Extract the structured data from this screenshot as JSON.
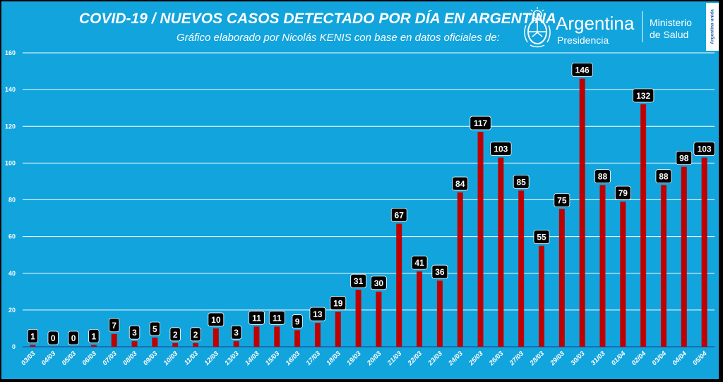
{
  "header": {
    "title": "COVID-19  /  NUEVOS CASOS DETECTADO POR DÍA EN ARGENTINA",
    "subtitle": "Gráfico elaborado por Nicolás KENIS con base en datos oficiales de:"
  },
  "logos": {
    "government": "Argentina",
    "government_sub": "Presidencia",
    "ministry_line1": "Ministerio",
    "ministry_line2": "de Salud",
    "badge": "Argentina unida"
  },
  "colors": {
    "background": "#12a4dd",
    "bar": "#c00000",
    "label_box": "#000000",
    "label_text": "#ffffff",
    "grid": "#ffffff"
  },
  "chart_data": {
    "type": "bar",
    "title": "COVID-19  /  NUEVOS CASOS DETECTADO POR DÍA EN ARGENTINA",
    "xlabel": "",
    "ylabel": "",
    "ylim": [
      0,
      160
    ],
    "yticks": [
      0,
      20,
      40,
      60,
      80,
      100,
      120,
      140,
      160
    ],
    "grid": true,
    "legend": "none",
    "categories": [
      "03/03",
      "04/03",
      "05/03",
      "06/03",
      "07/03",
      "08/03",
      "09/03",
      "10/03",
      "11/03",
      "12/03",
      "13/03",
      "14/03",
      "15/03",
      "16/03",
      "17/03",
      "18/03",
      "19/03",
      "20/03",
      "21/03",
      "22/03",
      "23/03",
      "24/03",
      "25/03",
      "26/03",
      "27/03",
      "28/03",
      "29/03",
      "30/03",
      "31/03",
      "01/04",
      "02/04",
      "03/04",
      "04/04",
      "05/04"
    ],
    "values": [
      1,
      0,
      0,
      1,
      7,
      3,
      5,
      2,
      2,
      10,
      3,
      11,
      11,
      9,
      13,
      19,
      31,
      30,
      67,
      41,
      36,
      84,
      117,
      103,
      85,
      55,
      75,
      146,
      88,
      79,
      132,
      88,
      98,
      103
    ]
  }
}
